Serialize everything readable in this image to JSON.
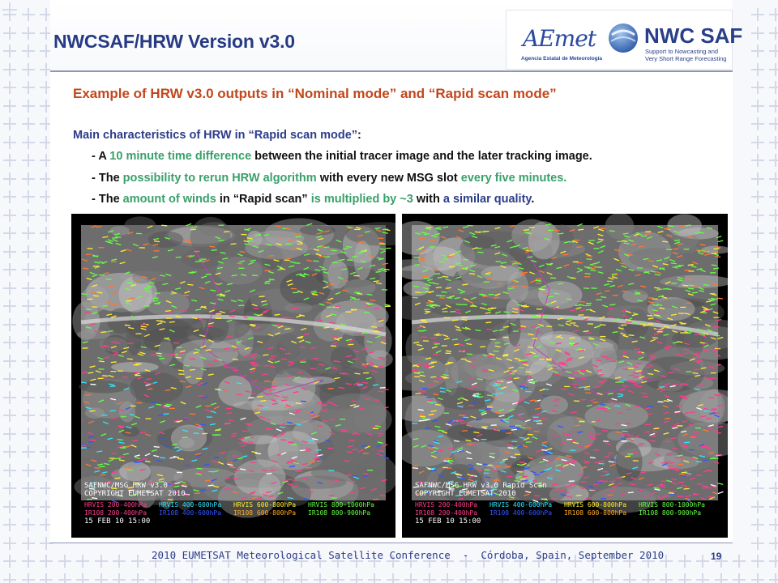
{
  "header": {
    "title": "NWCSAF/HRW Version v3.0",
    "logos": {
      "aemet_name": "AEmet",
      "aemet_subtitle": "Agencia Estatal de Meteorología",
      "nwc_name": "NWC SAF",
      "nwc_subtitle_1": "Support to Nowcasting and",
      "nwc_subtitle_2": "Very Short Range Forecasting"
    }
  },
  "main": {
    "subtitle": "Example of HRW v3.0 outputs in “Nominal mode” and “Rapid scan mode”",
    "section_head": "Main characteristics of HRW in “Rapid scan mode”",
    "section_colon": ":",
    "bullets": [
      {
        "parts": [
          {
            "text": "- A ",
            "style": "plain"
          },
          {
            "text": "10 minute time difference",
            "style": "green"
          },
          {
            "text": " between the initial tracer image and the later tracking image.",
            "style": "plain"
          }
        ]
      },
      {
        "parts": [
          {
            "text": "- The ",
            "style": "plain"
          },
          {
            "text": "possibility to rerun HRW algorithm",
            "style": "green"
          },
          {
            "text": " with every new MSG slot ",
            "style": "plain"
          },
          {
            "text": "every five minutes.",
            "style": "green"
          }
        ]
      },
      {
        "parts": [
          {
            "text": "- The ",
            "style": "plain"
          },
          {
            "text": "amount of winds",
            "style": "green"
          },
          {
            "text": " in “Rapid scan” ",
            "style": "plain"
          },
          {
            "text": "is multiplied by ~3",
            "style": "green"
          },
          {
            "text": " with ",
            "style": "plain"
          },
          {
            "text": "a similar quality",
            "style": "blue"
          },
          {
            "text": ".",
            "style": "plain"
          }
        ]
      }
    ]
  },
  "images": {
    "left": {
      "line1": "SAFNWC/MSG HRW v3.0",
      "line2": "COPYRIGHT EUMETSAT 2010",
      "legend_hrvis": [
        "HRVIS 200-400hPa",
        "HRVIS 400-600hPa",
        "HRVIS 600-800hPa",
        "HRVIS 800-1000hPa"
      ],
      "legend_ir108": [
        "IR108 200-400hPa",
        "IR108 400-600hPa",
        "IR108 600-800hPa",
        "IR108 800-900hPa"
      ],
      "date": "15 FEB 10 15:00"
    },
    "right": {
      "line1": "SAFNWC/MSG HRW v3.0 Rapid Scan",
      "line2": "COPYRIGHT EUMETSAT 2010",
      "legend_hrvis": [
        "HRVIS 200-400hPa",
        "HRVIS 400-600hPa",
        "HRVIS 600-800hPa",
        "HRVIS 800-1000hPa"
      ],
      "legend_ir108": [
        "IR108 200-400hPa",
        "IR108 400-600hPa",
        "IR108 600-800hPa",
        "IR108 800-900hPa"
      ],
      "date": "15 FEB 10 15:00"
    },
    "legend_colors": [
      "#ff3d8a",
      "#33e6ff",
      "#ffee33",
      "#66ff44"
    ],
    "legend_colors_ir": [
      "#ff3d8a",
      "#3355ff",
      "#ffaa22",
      "#66ff44"
    ]
  },
  "footer": {
    "conference": "2010 EUMETSAT Meteorological Satellite Conference  -  Córdoba, Spain, September 2010",
    "page_number": "19"
  }
}
